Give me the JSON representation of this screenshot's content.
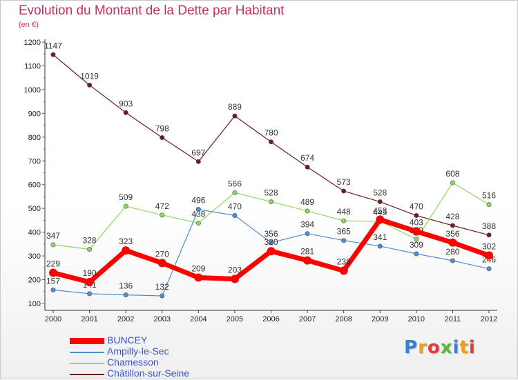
{
  "chart_data": {
    "type": "line",
    "title": "Evolution du Montant de la Dette par Habitant",
    "subtitle": "(en €)",
    "x": [
      "2000",
      "2001",
      "2002",
      "2003",
      "2004",
      "2005",
      "2006",
      "2007",
      "2008",
      "2009",
      "2010",
      "2011",
      "2012"
    ],
    "ylim": [
      100,
      1200
    ],
    "yticks": [
      100,
      200,
      300,
      400,
      500,
      600,
      700,
      800,
      900,
      1000,
      1100,
      1200
    ],
    "grid": false,
    "legend_position": "bottom-left",
    "series": [
      {
        "name": "Châtillon-sur-Seine",
        "color": "#6b1c1c",
        "values": [
          1147,
          1019,
          903,
          798,
          697,
          889,
          780,
          674,
          573,
          528,
          470,
          428,
          388
        ]
      },
      {
        "name": "Chamesson",
        "color": "#8fd75c",
        "values": [
          347,
          328,
          509,
          472,
          438,
          566,
          528,
          489,
          448,
          445,
          370,
          608,
          516
        ]
      },
      {
        "name": "Ampilly-le-Sec",
        "color": "#4e8ed1",
        "values": [
          157,
          141,
          136,
          132,
          496,
          470,
          356,
          394,
          365,
          341,
          309,
          280,
          246
        ]
      },
      {
        "name": "BUNCEY",
        "color": "#ff0000",
        "values": [
          229,
          190,
          323,
          270,
          209,
          203,
          320,
          281,
          238,
          453,
          403,
          356,
          302
        ]
      }
    ]
  },
  "legend": {
    "items": [
      {
        "label": "BUNCEY",
        "color": "#ff0000"
      },
      {
        "label": "Ampilly-le-Sec",
        "color": "#4e8ed1"
      },
      {
        "label": "Chamesson",
        "color": "#8fd75c"
      },
      {
        "label": "Châtillon-sur-Seine",
        "color": "#6b1c1c"
      }
    ]
  },
  "logo": {
    "text": "Proxiti",
    "colors": [
      "#3a7fd6",
      "#e8a317",
      "#e03c3c",
      "#5bb53c",
      "#3a7fd6",
      "#e8a317",
      "#e03c3c"
    ]
  }
}
